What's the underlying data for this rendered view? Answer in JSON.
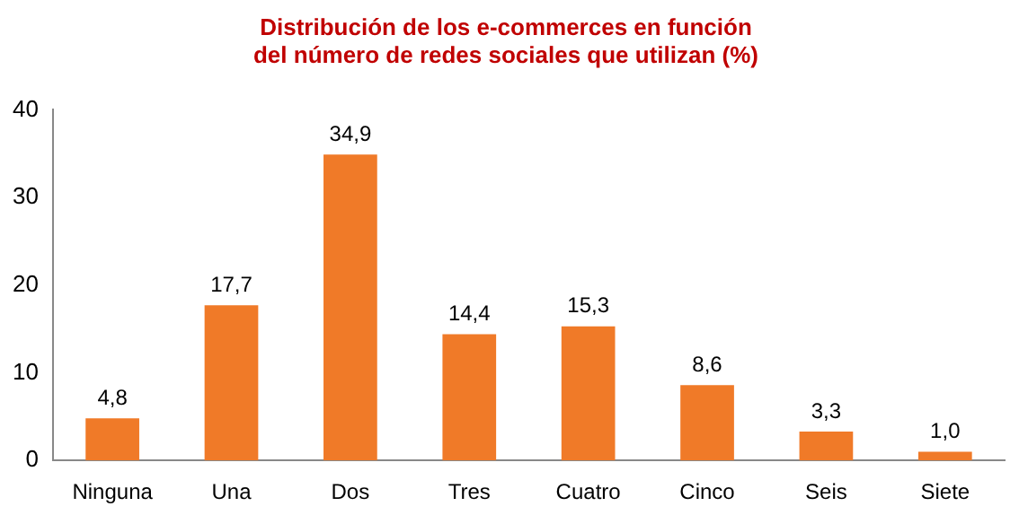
{
  "chart_data": {
    "type": "bar",
    "title": "Distribución de los e-commerces en función del número de redes sociales que utilizan (%)",
    "categories": [
      "Ninguna",
      "Una",
      "Dos",
      "Tres",
      "Cuatro",
      "Cinco",
      "Seis",
      "Siete"
    ],
    "values": [
      4.8,
      17.7,
      34.9,
      14.4,
      15.3,
      8.6,
      3.3,
      1.0
    ],
    "value_labels": [
      "4,8",
      "17,7",
      "34,9",
      "14,4",
      "15,3",
      "8,6",
      "3,3",
      "1,0"
    ],
    "color": "#f07a28",
    "ylim": [
      0,
      40
    ],
    "yticks": [
      0,
      10,
      20,
      30,
      40
    ],
    "grid": false,
    "legend": false
  }
}
